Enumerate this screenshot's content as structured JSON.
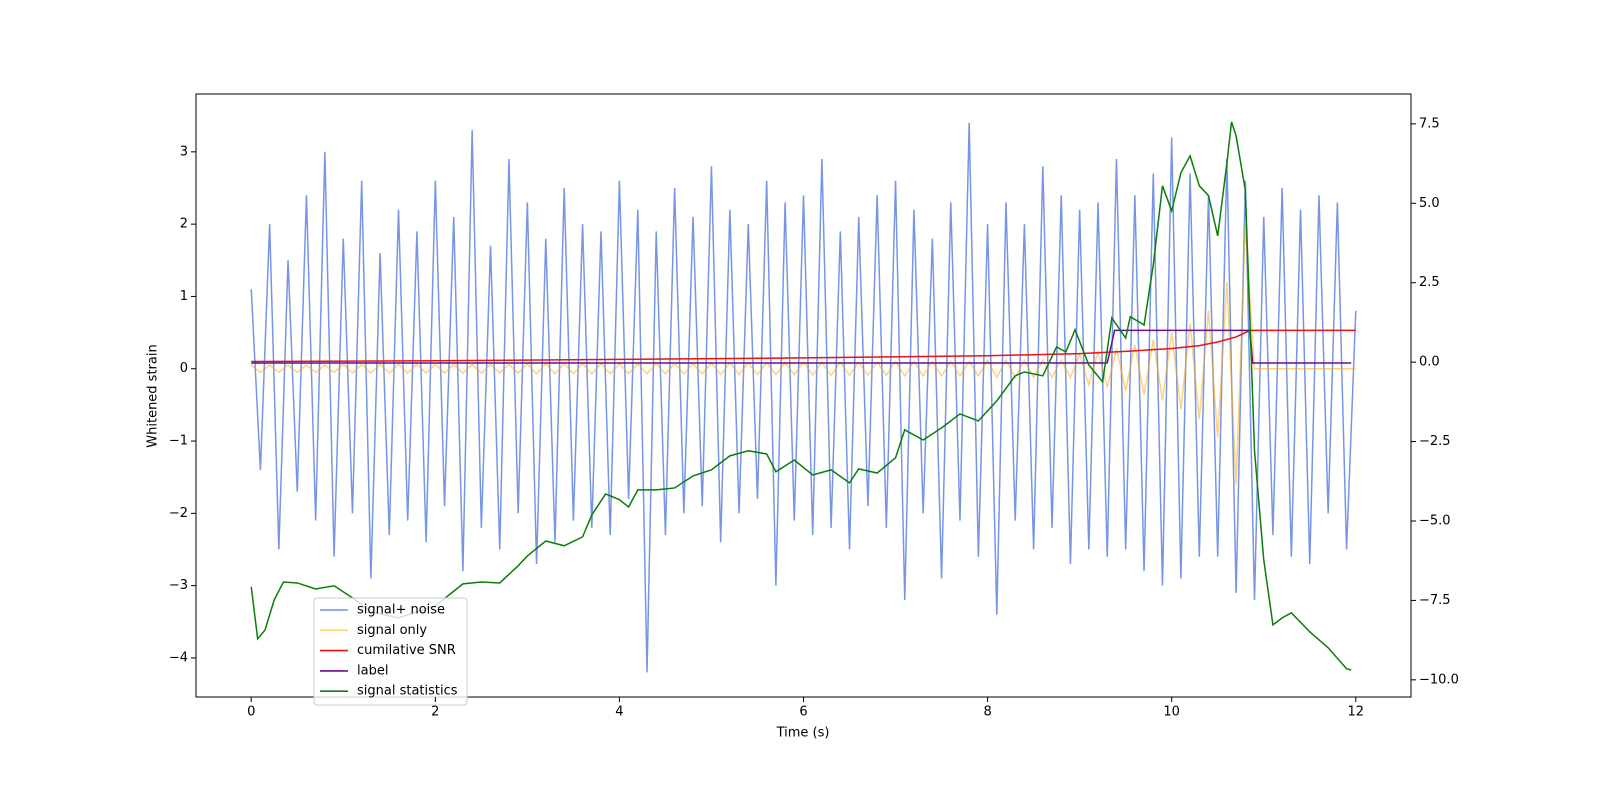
{
  "chart_data": {
    "type": "line",
    "xlabel": "Time (s)",
    "ylabel": "Whitened strain",
    "xlim": [
      -0.6,
      12.6
    ],
    "ylim": [
      -4.54,
      3.8
    ],
    "y2lim": [
      -10.54,
      8.44
    ],
    "xticks": [
      0,
      2,
      4,
      6,
      8,
      10,
      12
    ],
    "yticks": [
      {
        "value": -4,
        "label": "−4"
      },
      {
        "value": -3,
        "label": "−3"
      },
      {
        "value": -2,
        "label": "−2"
      },
      {
        "value": -1,
        "label": "−1"
      },
      0,
      1,
      2,
      3
    ],
    "y2ticks": [
      {
        "value": -10,
        "label": "−10.0"
      },
      {
        "value": -7.5,
        "label": "−7.5"
      },
      {
        "value": -5,
        "label": "−5.0"
      },
      {
        "value": -2.5,
        "label": "−2.5"
      },
      {
        "value": 0,
        "label": "0.0"
      },
      2.5,
      {
        "value": 5,
        "label": "5.0"
      },
      7.5
    ],
    "legend": "lower left",
    "x": [
      0,
      0.1,
      0.2,
      0.3,
      0.4,
      0.5,
      0.6,
      0.7,
      0.8,
      0.9,
      1,
      1.1,
      1.2,
      1.3,
      1.4,
      1.5,
      1.6,
      1.7,
      1.8,
      1.9,
      2,
      2.1,
      2.2,
      2.3,
      2.4,
      2.5,
      2.6,
      2.7,
      2.8,
      2.9,
      3,
      3.1,
      3.2,
      3.3,
      3.4,
      3.5,
      3.6,
      3.7,
      3.8,
      3.9,
      4,
      4.1,
      4.2,
      4.3,
      4.4,
      4.5,
      4.6,
      4.7,
      4.8,
      4.9,
      5,
      5.1,
      5.2,
      5.3,
      5.4,
      5.5,
      5.6,
      5.7,
      5.8,
      5.9,
      6,
      6.1,
      6.2,
      6.3,
      6.4,
      6.5,
      6.6,
      6.7,
      6.8,
      6.9,
      7,
      7.1,
      7.2,
      7.3,
      7.4,
      7.5,
      7.6,
      7.7,
      7.8,
      7.9,
      8,
      8.1,
      8.2,
      8.3,
      8.4,
      8.5,
      8.6,
      8.7,
      8.8,
      8.9,
      9,
      9.1,
      9.2,
      9.3,
      9.4,
      9.5,
      9.6,
      9.7,
      9.8,
      9.9,
      10,
      10.1,
      10.2,
      10.3,
      10.4,
      10.5,
      10.6,
      10.7,
      10.8,
      10.9,
      11,
      11.1,
      11.2,
      11.3,
      11.4,
      11.5,
      11.6,
      11.7,
      11.8,
      11.9,
      12
    ],
    "series": [
      {
        "name": "signal+ noise",
        "color": "#6f8fe6",
        "values": [
          1.1,
          -1.4,
          2.0,
          -2.5,
          1.5,
          -1.7,
          2.4,
          -2.1,
          3.0,
          -2.6,
          1.8,
          -2.0,
          2.6,
          -2.9,
          1.6,
          -2.3,
          2.2,
          -2.1,
          1.9,
          -2.4,
          2.6,
          -1.9,
          2.1,
          -2.8,
          3.3,
          -2.2,
          1.7,
          -2.5,
          2.9,
          -2.0,
          2.3,
          -2.7,
          1.8,
          -2.4,
          2.5,
          -2.1,
          2.0,
          -2.2,
          1.9,
          -2.3,
          2.6,
          -1.8,
          2.2,
          -4.2,
          1.9,
          -2.3,
          2.5,
          -2.0,
          2.1,
          -1.9,
          2.8,
          -2.4,
          2.2,
          -2.0,
          2.0,
          -1.8,
          2.6,
          -3.0,
          2.3,
          -2.1,
          2.4,
          -2.3,
          2.9,
          -2.2,
          1.9,
          -2.5,
          2.1,
          -1.9,
          2.4,
          -2.2,
          2.6,
          -3.2,
          2.2,
          -2.0,
          1.8,
          -2.9,
          2.3,
          -2.1,
          3.4,
          -2.6,
          2.0,
          -3.4,
          2.3,
          -2.1,
          2.0,
          -2.5,
          2.8,
          -2.2,
          2.4,
          -2.7,
          2.2,
          -2.5,
          2.3,
          -2.6,
          2.9,
          -2.5,
          2.4,
          -2.8,
          2.7,
          -3.0,
          3.2,
          -2.9,
          2.7,
          -2.6,
          2.4,
          -2.6,
          2.9,
          -3.1,
          2.6,
          -3.2,
          2.1,
          -2.3,
          2.5,
          -2.6,
          2.2,
          -2.7,
          2.4,
          -2.0,
          2.3,
          -2.5,
          0.8
        ]
      },
      {
        "name": "signal only",
        "color": "#ffa500",
        "values": [
          0.05,
          -0.05,
          0.05,
          -0.05,
          0.05,
          -0.05,
          0.05,
          -0.05,
          0.05,
          -0.05,
          0.06,
          -0.06,
          0.06,
          -0.06,
          0.06,
          -0.06,
          0.06,
          -0.06,
          0.06,
          -0.06,
          0.06,
          -0.06,
          0.06,
          -0.06,
          0.06,
          -0.06,
          0.06,
          -0.06,
          0.06,
          -0.06,
          0.07,
          -0.07,
          0.07,
          -0.07,
          0.07,
          -0.07,
          0.07,
          -0.07,
          0.07,
          -0.07,
          0.07,
          -0.07,
          0.07,
          -0.07,
          0.07,
          -0.07,
          0.07,
          -0.07,
          0.07,
          -0.07,
          0.08,
          -0.08,
          0.08,
          -0.08,
          0.08,
          -0.08,
          0.08,
          -0.08,
          0.08,
          -0.08,
          0.09,
          -0.09,
          0.09,
          -0.09,
          0.09,
          -0.09,
          0.09,
          -0.09,
          0.09,
          -0.09,
          0.1,
          -0.1,
          0.1,
          -0.1,
          0.1,
          -0.1,
          0.1,
          -0.1,
          0.1,
          -0.1,
          0.12,
          -0.12,
          0.12,
          -0.12,
          0.12,
          -0.12,
          0.12,
          -0.12,
          0.12,
          -0.12,
          0.2,
          -0.22,
          0.24,
          -0.26,
          0.28,
          -0.3,
          0.33,
          -0.36,
          0.4,
          -0.44,
          0.5,
          -0.56,
          0.62,
          -0.7,
          0.8,
          -0.95,
          1.2,
          -1.6,
          2.0,
          0,
          0,
          0,
          0,
          0,
          0,
          0,
          0,
          0,
          0,
          0,
          0
        ]
      },
      {
        "name": "cumilative SNR",
        "color": "#e8130f",
        "x": [
          0,
          2,
          4,
          6,
          8,
          9,
          9.5,
          10,
          10.3,
          10.5,
          10.7,
          10.85,
          11,
          12
        ],
        "values": [
          0.1,
          0.11,
          0.13,
          0.15,
          0.18,
          0.21,
          0.24,
          0.28,
          0.32,
          0.37,
          0.44,
          0.53,
          0.53,
          0.53
        ]
      },
      {
        "name": "label",
        "color": "#6a0f86",
        "x": [
          0,
          9.3,
          9.38,
          10.85,
          10.88,
          11.95
        ],
        "values": [
          0.08,
          0.08,
          0.53,
          0.53,
          0.08,
          0.08
        ]
      },
      {
        "name": "signal statistics",
        "color": "#0a7d0a",
        "axis": "y2",
        "x": [
          0,
          0.07,
          0.15,
          0.25,
          0.35,
          0.5,
          0.7,
          0.9,
          1.1,
          1.3,
          1.6,
          2.0,
          2.3,
          2.5,
          2.7,
          2.9,
          3.0,
          3.2,
          3.4,
          3.6,
          3.7,
          3.85,
          4.0,
          4.1,
          4.2,
          4.4,
          4.6,
          4.8,
          5.0,
          5.2,
          5.4,
          5.6,
          5.7,
          5.9,
          6.1,
          6.3,
          6.5,
          6.6,
          6.8,
          7.0,
          7.1,
          7.3,
          7.5,
          7.7,
          7.9,
          8.1,
          8.3,
          8.4,
          8.6,
          8.75,
          8.85,
          8.95,
          9.1,
          9.25,
          9.35,
          9.5,
          9.55,
          9.7,
          9.8,
          9.9,
          10.0,
          10.1,
          10.2,
          10.3,
          10.4,
          10.5,
          10.6,
          10.65,
          10.7,
          10.8,
          10.9,
          11.0,
          11.1,
          11.2,
          11.3,
          11.5,
          11.7,
          11.9,
          11.95
        ],
        "values": [
          -7.07,
          -8.71,
          -8.43,
          -7.48,
          -6.92,
          -6.95,
          -7.14,
          -7.04,
          -7.42,
          -7.86,
          -8.05,
          -7.67,
          -6.98,
          -6.92,
          -6.95,
          -6.41,
          -6.1,
          -5.63,
          -5.78,
          -5.5,
          -4.81,
          -4.15,
          -4.33,
          -4.56,
          -4.02,
          -4.02,
          -3.96,
          -3.58,
          -3.39,
          -2.95,
          -2.79,
          -2.89,
          -3.45,
          -3.08,
          -3.55,
          -3.39,
          -3.8,
          -3.36,
          -3.49,
          -3.01,
          -2.13,
          -2.45,
          -2.07,
          -1.63,
          -1.85,
          -1.22,
          -0.43,
          -0.31,
          -0.43,
          0.48,
          0.32,
          1.02,
          -0.09,
          -0.62,
          1.39,
          0.76,
          1.43,
          1.17,
          3.06,
          5.55,
          4.76,
          5.96,
          6.49,
          5.55,
          5.24,
          3.97,
          6.27,
          7.56,
          7.12,
          5.42,
          -2.79,
          -6.22,
          -8.27,
          -8.05,
          -7.89,
          -8.49,
          -8.99,
          -9.65,
          -9.69
        ]
      }
    ]
  }
}
